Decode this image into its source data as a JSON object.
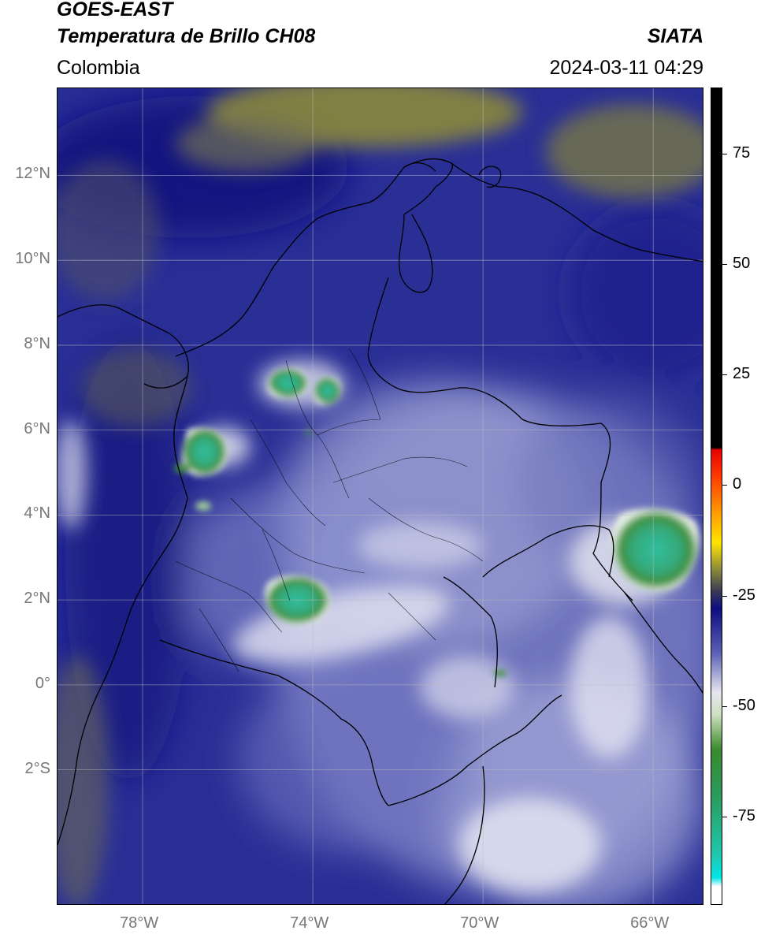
{
  "header": {
    "line1": "GOES-EAST",
    "line2": "Temperatura de Brillo CH08",
    "source": "SIATA",
    "region": "Colombia",
    "datetime": "2024-03-11 04:29"
  },
  "map": {
    "lon_range": [
      -80,
      -64.8
    ],
    "lat_range": [
      -5.2,
      14.05
    ],
    "lat_ticks": [
      {
        "value": 12,
        "label": "12°N"
      },
      {
        "value": 10,
        "label": "10°N"
      },
      {
        "value": 8,
        "label": "8°N"
      },
      {
        "value": 6,
        "label": "6°N"
      },
      {
        "value": 4,
        "label": "4°N"
      },
      {
        "value": 2,
        "label": "2°N"
      },
      {
        "value": 0,
        "label": "0°"
      },
      {
        "value": -2,
        "label": "2°S"
      }
    ],
    "lon_ticks": [
      {
        "value": -78,
        "label": "78°W"
      },
      {
        "value": -74,
        "label": "74°W"
      },
      {
        "value": -70,
        "label": "70°W"
      },
      {
        "value": -66,
        "label": "66°W"
      }
    ],
    "grid": true,
    "colors": {
      "background_blue": "#2a2f96",
      "deep_blue": "#10167a",
      "olive": "#8a8a3c",
      "lavender": "#9fa3d2",
      "white": "#f2f2f6",
      "green": "#2e8f3a",
      "teal": "#2fbf9f",
      "coastline": "#000000",
      "gridline": "#bdbdbd"
    }
  },
  "colorbar": {
    "range": [
      -95,
      90
    ],
    "ticks": [
      {
        "value": 75,
        "label": "75"
      },
      {
        "value": 50,
        "label": "50"
      },
      {
        "value": 25,
        "label": "25"
      },
      {
        "value": 0,
        "label": "0"
      },
      {
        "value": -25,
        "label": "-25"
      },
      {
        "value": -50,
        "label": "-50"
      },
      {
        "value": -75,
        "label": "-75"
      }
    ],
    "stops": [
      {
        "value": 90,
        "color": "#000000"
      },
      {
        "value": 8.5,
        "color": "#000000"
      },
      {
        "value": 8,
        "color": "#e60000"
      },
      {
        "value": 2,
        "color": "#ff3a00"
      },
      {
        "value": -6,
        "color": "#ff9900"
      },
      {
        "value": -13,
        "color": "#ffe400"
      },
      {
        "value": -19,
        "color": "#8c8c3a"
      },
      {
        "value": -24,
        "color": "#3a3a55"
      },
      {
        "value": -28,
        "color": "#0d0d80"
      },
      {
        "value": -38,
        "color": "#5a60b4"
      },
      {
        "value": -47,
        "color": "#e6e6f0"
      },
      {
        "value": -52,
        "color": "#cfe0c0"
      },
      {
        "value": -60,
        "color": "#3a8a2c"
      },
      {
        "value": -70,
        "color": "#2a9a5a"
      },
      {
        "value": -84,
        "color": "#1fc8b0"
      },
      {
        "value": -89,
        "color": "#00e6e6"
      },
      {
        "value": -91,
        "color": "#ffffff"
      },
      {
        "value": -95,
        "color": "#ffffff"
      }
    ]
  }
}
